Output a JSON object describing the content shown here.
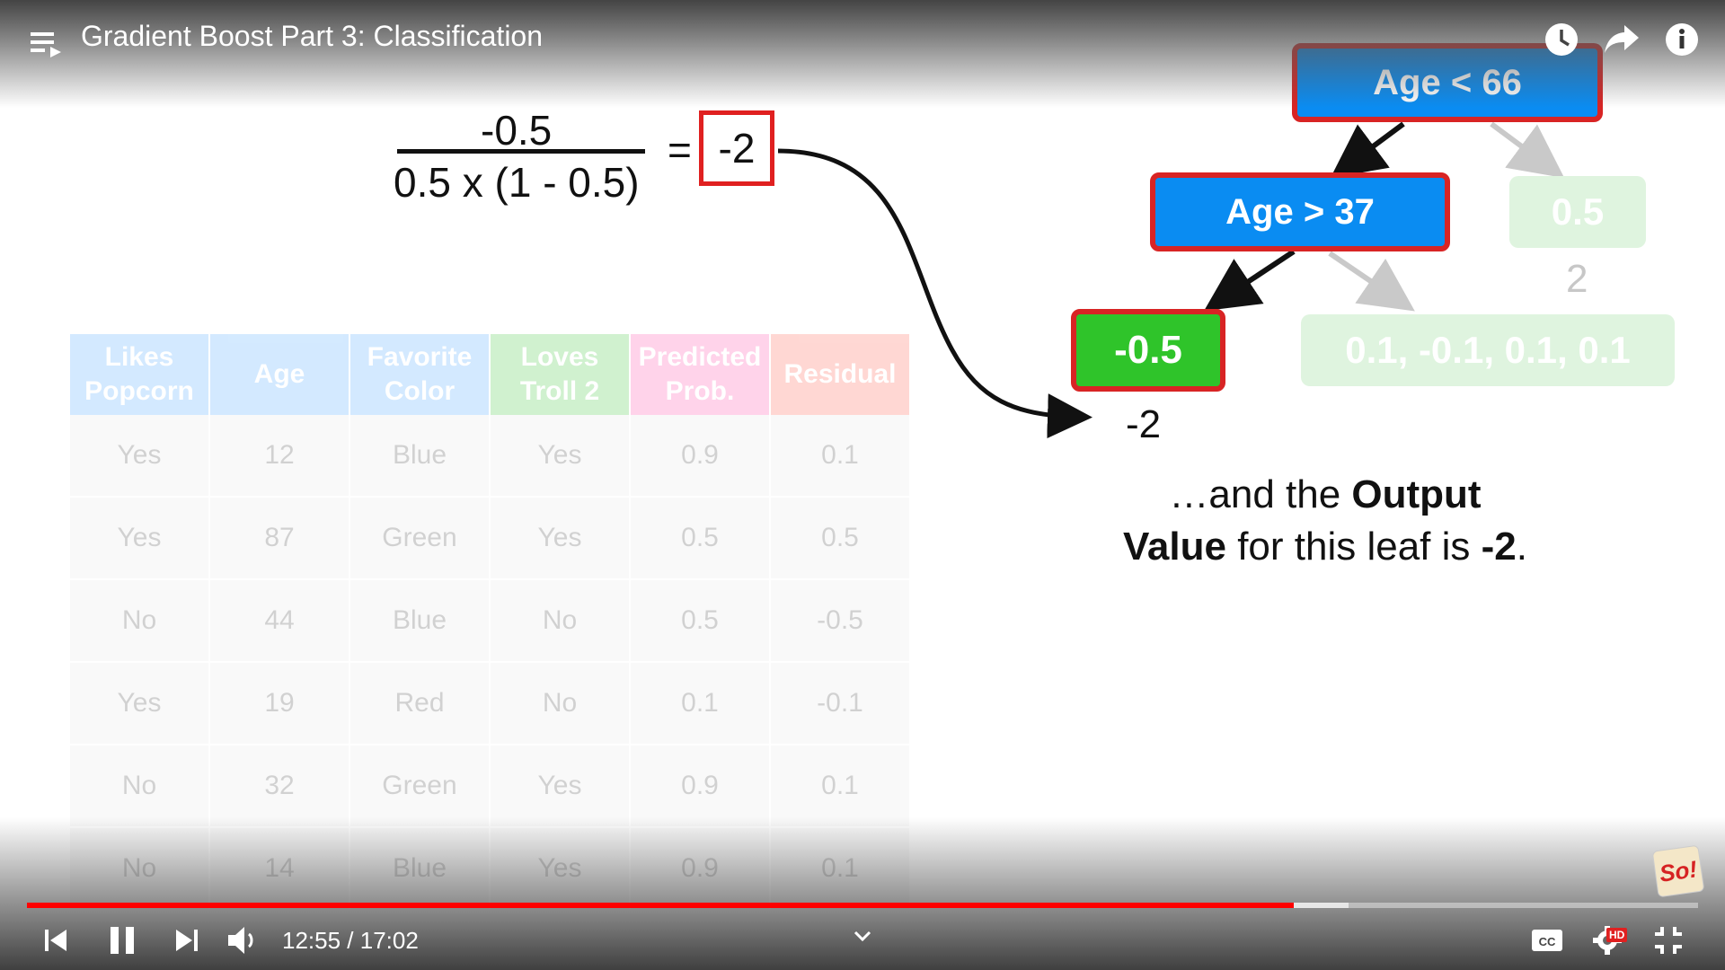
{
  "player": {
    "title": "Gradient Boost Part 3: Classification",
    "time_current": "12:55",
    "time_total": "17:02",
    "time_display": "12:55 / 17:02",
    "progress_fraction": 0.758,
    "buffer_fraction": 0.791,
    "accent_color": "#ff0000",
    "hd_label": "HD",
    "channel_logo_text": "So!",
    "icons": {
      "menu": "playlist-icon",
      "watch_later": "clock-icon",
      "share": "share-arrow-icon",
      "info": "info-icon",
      "prev": "previous-icon",
      "pause": "pause-icon",
      "next": "next-icon",
      "volume": "volume-icon",
      "chevron": "chevron-down-icon",
      "cc": "captions-icon",
      "settings": "gear-icon",
      "exit_fullscreen": "exit-fullscreen-icon"
    }
  },
  "slide": {
    "formula": {
      "numerator": "-0.5",
      "denominator": "0.5 x (1 - 0.5)",
      "equals": "=",
      "result": "-2"
    },
    "tree": {
      "root": "Age < 66",
      "internal": "Age > 37",
      "leaf_highlight": "-0.5",
      "leaf_highlight_output": "-2",
      "leaf_right_root": "0.5",
      "leaf_right_root_output": "2",
      "leaf_right_internal": "0.1, -0.1, 0.1, 0.1"
    },
    "caption": {
      "part1": "…and the ",
      "bold1": "Output",
      "bold2": "Value",
      "part2": " for this leaf is ",
      "bold3": "-2",
      "part3": "."
    },
    "table": {
      "headers": [
        {
          "line1": "Likes",
          "line2": "Popcorn",
          "color": "#3aa0ff"
        },
        {
          "line1": "Age",
          "line2": "",
          "color": "#3aa0ff"
        },
        {
          "line1": "Favorite",
          "line2": "Color",
          "color": "#3aa0ff"
        },
        {
          "line1": "Loves",
          "line2": "Troll 2",
          "color": "#2fc42a"
        },
        {
          "line1": "Predicted",
          "line2": "Prob.",
          "color": "#ff3aa5"
        },
        {
          "line1": "Residual",
          "line2": "",
          "color": "#ff4d3a"
        }
      ],
      "rows": [
        [
          "Yes",
          "12",
          "Blue",
          "Yes",
          "0.9",
          "0.1"
        ],
        [
          "Yes",
          "87",
          "Green",
          "Yes",
          "0.5",
          "0.5"
        ],
        [
          "No",
          "44",
          "Blue",
          "No",
          "0.5",
          "-0.5"
        ],
        [
          "Yes",
          "19",
          "Red",
          "No",
          "0.1",
          "-0.1"
        ],
        [
          "No",
          "32",
          "Green",
          "Yes",
          "0.9",
          "0.1"
        ],
        [
          "No",
          "14",
          "Blue",
          "Yes",
          "0.9",
          "0.1"
        ]
      ]
    }
  }
}
